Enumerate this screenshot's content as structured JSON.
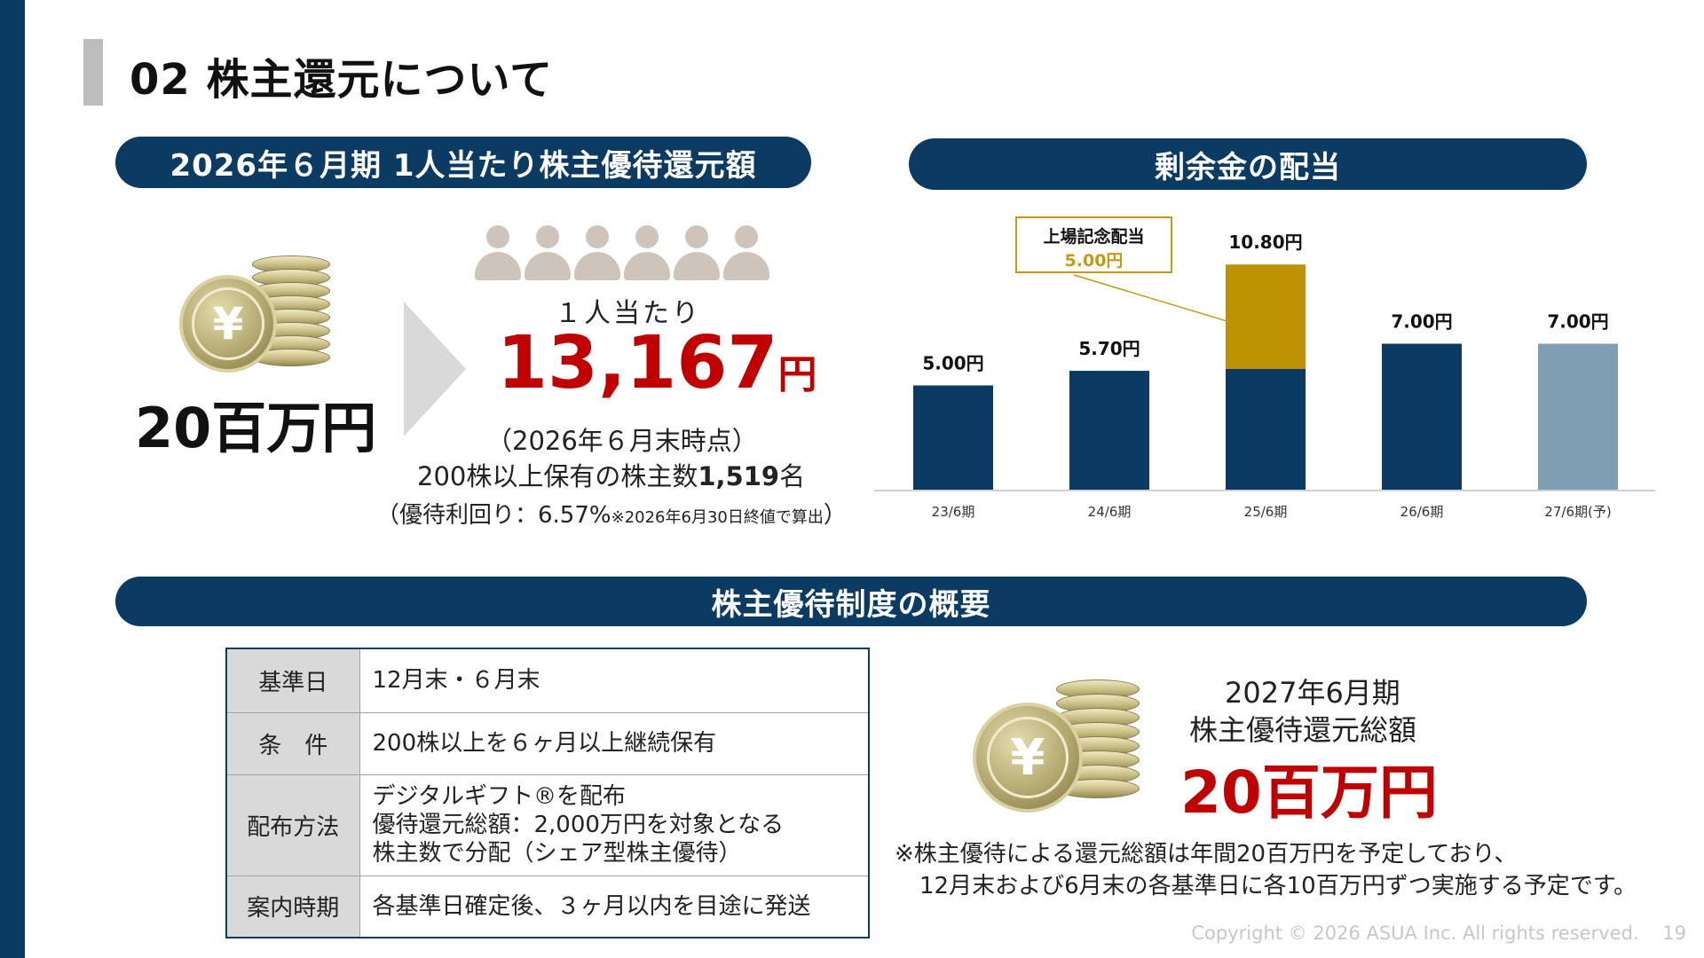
{
  "page_title": "02 株主還元について",
  "left_section": {
    "pill": "2026年６月期 1人当たり株主優待還元額",
    "total": "20百万円",
    "per_person_label": "１人当たり",
    "per_person_amount": "13,167",
    "per_person_unit": "円",
    "as_of": "（2026年６月末時点）",
    "holders_prefix": "200株以上保有の株主数",
    "holders_count": "1,519",
    "holders_suffix": "名",
    "yield_main": "（優待利回り：6.57%",
    "yield_note": "※2026年6月30日終値で算出",
    "yield_close": "）",
    "yen_symbol": "¥"
  },
  "right_section": {
    "pill": "剰余金の配当",
    "callout_title": "上場記念配当",
    "callout_value": "5.00円"
  },
  "chart_data": {
    "type": "bar",
    "categories": [
      "23/6期",
      "24/6期",
      "25/6期",
      "26/6期",
      "27/6期(予)"
    ],
    "series": [
      {
        "name": "",
        "values": [
          5.0,
          5.7,
          5.8,
          7.0,
          7.0
        ]
      },
      {
        "name": "上場記念配当",
        "values": [
          0,
          0,
          5.0,
          0,
          0
        ]
      }
    ],
    "totals": [
      5.0,
      5.7,
      10.8,
      7.0,
      7.0
    ],
    "data_labels": [
      "5.00円",
      "5.70円",
      "10.80円",
      "7.00円",
      "7.00円"
    ],
    "forecast_index": 4,
    "ylim": [
      0,
      12
    ],
    "colors": {
      "base": "#0b3a63",
      "commemorative": "#bf9204",
      "forecast": "#7f9db3"
    },
    "title": "",
    "xlabel": "",
    "ylabel": ""
  },
  "overview": {
    "pill": "株主優待制度の概要",
    "rows": [
      {
        "header": "基準日",
        "lines": [
          "12月末・６月末"
        ]
      },
      {
        "header": "条　件",
        "lines": [
          "200株以上を６ヶ月以上継続保有"
        ]
      },
      {
        "header": "配布方法",
        "lines": [
          "デジタルギフト®を配布",
          "優待還元総額：2,000万円を対象となる",
          "株主数で分配（シェア型株主優待）"
        ]
      },
      {
        "header": "案内時期",
        "lines": [
          "各基準日確定後、３ヶ月以内を目途に発送"
        ]
      }
    ],
    "future_period": "2027年6月期",
    "future_label": "株主優待還元総額",
    "future_amount": "20百万円",
    "note_line1": "※株主優待による還元総額は年間20百万円を予定しており、",
    "note_line2": "12月末および6月末の各基準日に各10百万円ずつ実施する予定です。"
  },
  "footer": {
    "copyright": "Copyright © 2026 ASUA Inc. All rights reserved.",
    "page_number": "19"
  }
}
